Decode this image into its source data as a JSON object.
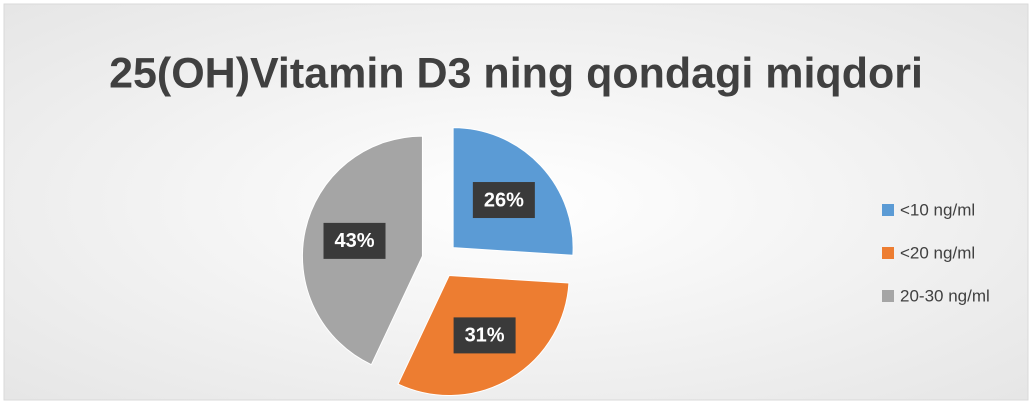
{
  "chart_data": {
    "type": "pie",
    "title": "25(OH)Vitamin D3 ning qondagi miqdori",
    "categories": [
      "<10 ng/ml",
      "<20 ng/ml",
      "20-30 ng/ml"
    ],
    "values": [
      26,
      31,
      43
    ],
    "value_labels": [
      "26%",
      "31%",
      "43%"
    ],
    "colors": [
      "#5b9bd5",
      "#ed7d31",
      "#a5a5a5"
    ],
    "legend": "right"
  }
}
